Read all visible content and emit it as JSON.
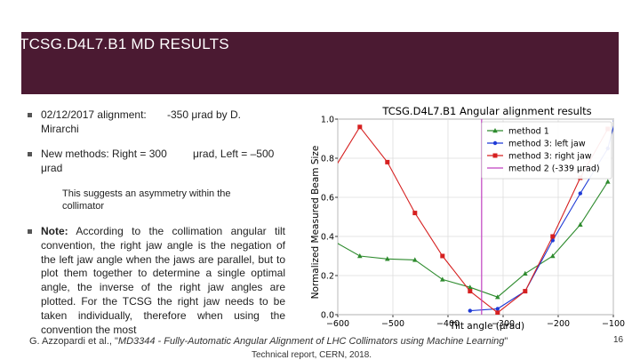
{
  "slide": {
    "title": "TCSG.D4L7.B1 MD RESULTS",
    "bullet1_a": "02/12/2017 alignment:",
    "bullet1_b": "Mirarchi",
    "bullet1_c": "-350 μrad by D.",
    "bullet2_a": "New methods: Right = 300",
    "bullet2_b": "μrad",
    "bullet2_c": "μrad, Left = –500",
    "sub_text": "This suggests an asymmetry within the collimator",
    "note_label": "Note:",
    "note_text": "According to the collimation angular tilt convention, the right jaw angle is the negation of the left jaw angle when the jaws are parallel, but to plot them together to determine a single optimal angle, the inverse of the right jaw angles are plotted. For the TCSG the right jaw needs to be taken individually, therefore when using the convention the most",
    "footer_author": "G. Azzopardi et al., \"",
    "footer_title": "MD3344 - Fully-Automatic Angular Alignment of LHC Collimators using Machine Learning",
    "footer_end": "\"",
    "footer_line2": "Technical report, CERN, 2018.",
    "page_number": "16",
    "colors": {
      "header": "#4b1a32",
      "method1": "#2e8b2e",
      "left_jaw": "#1f3bd6",
      "right_jaw": "#d62020",
      "method2": "#c040c0"
    }
  },
  "chart_data": {
    "type": "line",
    "title": "TCSG.D4L7.B1 Angular alignment results",
    "xlabel": "Tilt angle (μrad)",
    "ylabel": "Normalized Measured Beam Size",
    "xlim": [
      -600,
      -100
    ],
    "ylim": [
      0.0,
      1.0
    ],
    "xticks": [
      "−600",
      "−500",
      "−400",
      "−300",
      "−200",
      "−100"
    ],
    "yticks": [
      "0.0",
      "0.2",
      "0.4",
      "0.6",
      "0.8",
      "1.0"
    ],
    "grid": true,
    "legend_position": "top-right",
    "series": [
      {
        "name": "method 1",
        "color": "#2e8b2e",
        "marker": "triangle",
        "x": [
          -610,
          -560,
          -510,
          -460,
          -410,
          -360,
          -310,
          -260,
          -210,
          -160,
          -110
        ],
        "y": [
          0.38,
          0.3,
          0.285,
          0.28,
          0.18,
          0.14,
          0.09,
          0.21,
          0.3,
          0.46,
          0.68
        ]
      },
      {
        "name": "method 3: left jaw",
        "color": "#1f3bd6",
        "marker": "circle",
        "x": [
          -360,
          -310,
          -260,
          -210,
          -160,
          -110,
          -97
        ],
        "y": [
          0.02,
          0.03,
          0.12,
          0.38,
          0.62,
          0.85,
          0.99
        ]
      },
      {
        "name": "method 3: right jaw",
        "color": "#d62020",
        "marker": "square",
        "x": [
          -610,
          -560,
          -510,
          -460,
          -410,
          -360,
          -310,
          -260,
          -210,
          -160,
          -110
        ],
        "y": [
          0.73,
          0.96,
          0.78,
          0.52,
          0.3,
          0.12,
          0.01,
          0.12,
          0.4,
          0.7,
          0.95
        ]
      },
      {
        "name": "method 2 (-339 μrad)",
        "color": "#c040c0",
        "vline": -339
      }
    ]
  }
}
